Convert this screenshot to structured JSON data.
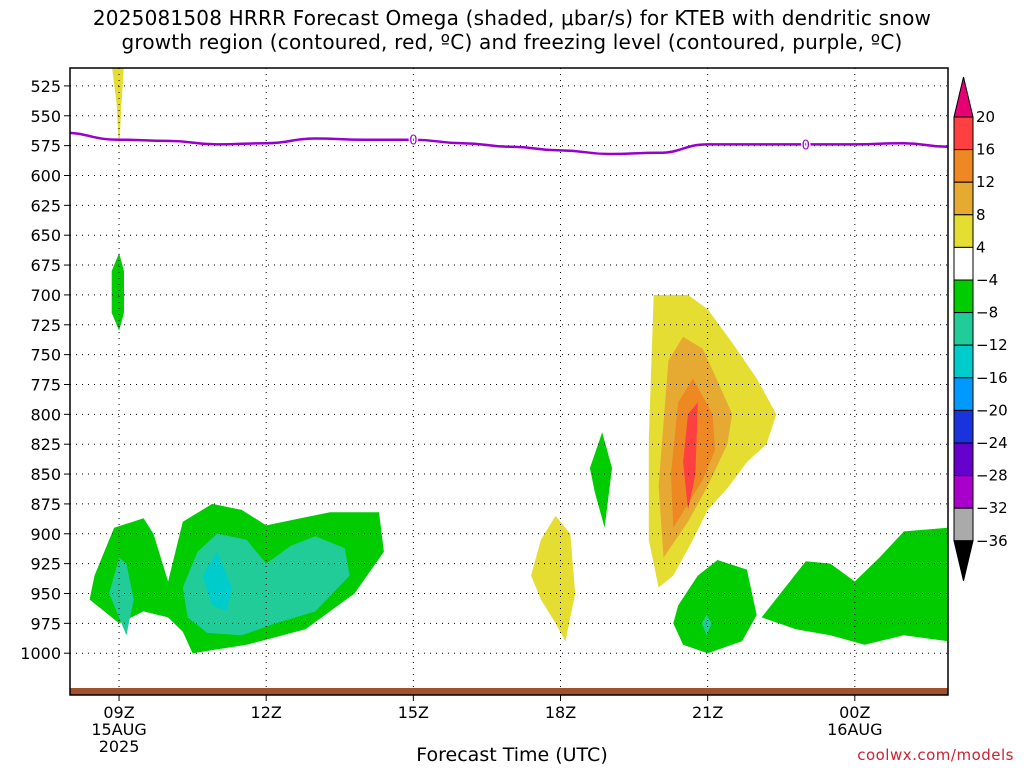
{
  "title_line1": "2025081508 HRRR Forecast Omega (shaded, μbar/s) for KTEB with dendritic snow",
  "title_line2": "growth region (contoured, red, ºC) and freezing level (contoured, purple, ºC)",
  "credit": "coolwx.com/models",
  "colors": {
    "freezing_line": "#9900cc",
    "terrain": "#a0522d",
    "neg4": "#00cc00",
    "neg8": "#22cc99",
    "neg12": "#00cccc",
    "pos4": "#e6dd33",
    "pos8": "#e6aa33",
    "pos12": "#ee8822",
    "pos16": "#ff4040"
  },
  "chart_data": {
    "type": "area",
    "xlabel": "Forecast Time (UTC)",
    "x_unit": "hours from 2025-08-15 08Z",
    "xlim": [
      8,
      25.9
    ],
    "ylim": [
      1035,
      510
    ],
    "y_ticks": [
      525,
      550,
      575,
      600,
      625,
      650,
      675,
      700,
      725,
      750,
      775,
      800,
      825,
      850,
      875,
      900,
      925,
      950,
      975,
      1000
    ],
    "x_ticks": [
      {
        "x": 9,
        "label": "09Z",
        "sub": [
          "15AUG",
          "2025"
        ]
      },
      {
        "x": 12,
        "label": "12Z",
        "sub": []
      },
      {
        "x": 15,
        "label": "15Z",
        "sub": []
      },
      {
        "x": 18,
        "label": "18Z",
        "sub": []
      },
      {
        "x": 21,
        "label": "21Z",
        "sub": []
      },
      {
        "x": 24,
        "label": "00Z",
        "sub": [
          "16AUG"
        ]
      }
    ],
    "grid": true,
    "colorbar": {
      "labels": [
        "20",
        "16",
        "12",
        "8",
        "4",
        "−4",
        "−8",
        "−12",
        "−16",
        "−20",
        "−24",
        "−28",
        "−32",
        "−36"
      ],
      "colors": [
        "#e60073",
        "#ff4040",
        "#ee8822",
        "#e6aa33",
        "#e6dd33",
        "#ffffff",
        "#00cc00",
        "#22cc99",
        "#00cccc",
        "#0099ff",
        "#1a33dd",
        "#6600cc",
        "#aa00cc",
        "#aaaaaa",
        "#000000"
      ]
    },
    "freezing_level": {
      "label": "0",
      "label_x": [
        15,
        23
      ],
      "x": [
        7.8,
        9,
        10,
        11,
        12,
        13,
        14,
        15,
        16,
        17,
        18,
        19,
        20,
        21,
        22,
        23,
        24,
        25,
        25.9
      ],
      "p": [
        564,
        570,
        571,
        574,
        573,
        569,
        570,
        570,
        573,
        576,
        579,
        582,
        581,
        574,
        574,
        574,
        574,
        573,
        576
      ]
    },
    "shaded": [
      {
        "level": "pos4",
        "x": [
          8.8,
          9.1,
          9.05,
          9.0,
          8.95,
          8.85
        ],
        "p": [
          507,
          507,
          540,
          580,
          540,
          507
        ]
      },
      {
        "level": "neg4",
        "x": [
          9.0,
          9.1,
          9.1,
          9.0,
          8.85,
          8.85
        ],
        "p": [
          665,
          680,
          715,
          730,
          715,
          680
        ]
      },
      {
        "level": "neg4",
        "x": [
          8.5,
          8.9,
          9.5,
          9.7,
          10.0,
          10.3,
          10.9,
          11.5,
          12.0,
          12.7,
          13.3,
          14.3,
          14.4,
          13.8,
          12.8,
          11.6,
          10.5,
          10.3,
          10.0,
          9.5,
          9.0,
          8.4,
          8.5
        ],
        "p": [
          935,
          895,
          887,
          900,
          940,
          890,
          875,
          880,
          893,
          887,
          882,
          882,
          915,
          950,
          980,
          993,
          1000,
          982,
          970,
          965,
          975,
          955,
          935
        ]
      },
      {
        "level": "neg8",
        "x": [
          9.0,
          8.8,
          9.15,
          9.3,
          9.15,
          9.0
        ],
        "p": [
          920,
          950,
          985,
          955,
          925,
          920
        ]
      },
      {
        "level": "neg8",
        "x": [
          10.3,
          10.6,
          11.0,
          11.6,
          12.0,
          12.5,
          13.0,
          13.6,
          13.7,
          13.0,
          12.2,
          11.5,
          10.8,
          10.4,
          10.3
        ],
        "p": [
          945,
          915,
          900,
          905,
          925,
          910,
          902,
          912,
          935,
          965,
          975,
          985,
          983,
          970,
          945
        ]
      },
      {
        "level": "neg12",
        "x": [
          10.7,
          11.0,
          11.3,
          11.2,
          10.9,
          10.7
        ],
        "p": [
          935,
          915,
          945,
          965,
          960,
          935
        ]
      },
      {
        "level": "neg4",
        "x": [
          18.6,
          18.85,
          19.05,
          18.9,
          18.7,
          18.6
        ],
        "p": [
          845,
          815,
          845,
          895,
          865,
          845
        ]
      },
      {
        "level": "pos4",
        "x": [
          17.6,
          17.9,
          18.2,
          18.3,
          18.1,
          17.9,
          17.6,
          17.4,
          17.6
        ],
        "p": [
          905,
          885,
          900,
          950,
          990,
          975,
          955,
          935,
          905
        ]
      },
      {
        "level": "pos4",
        "x": [
          19.9,
          20.6,
          21.0,
          21.5,
          22.0,
          22.4,
          22.2,
          21.8,
          21.4,
          21.0,
          20.7,
          20.3,
          20.0,
          19.8,
          19.8,
          19.9
        ],
        "p": [
          700,
          700,
          712,
          740,
          770,
          800,
          825,
          840,
          862,
          880,
          905,
          935,
          945,
          905,
          820,
          700
        ]
      },
      {
        "level": "pos8",
        "x": [
          20.2,
          20.5,
          20.9,
          21.2,
          21.5,
          21.4,
          21.0,
          20.6,
          20.1,
          20.0,
          20.2
        ],
        "p": [
          755,
          735,
          745,
          772,
          800,
          825,
          860,
          890,
          920,
          860,
          755
        ]
      },
      {
        "level": "pos12",
        "x": [
          20.4,
          20.7,
          21.1,
          21.15,
          20.9,
          20.6,
          20.3,
          20.25,
          20.4
        ],
        "p": [
          790,
          770,
          800,
          830,
          855,
          875,
          895,
          850,
          790
        ]
      },
      {
        "level": "pos16",
        "x": [
          20.6,
          20.8,
          20.75,
          20.6,
          20.5,
          20.6
        ],
        "p": [
          800,
          790,
          850,
          880,
          840,
          800
        ]
      },
      {
        "level": "neg4",
        "x": [
          20.4,
          20.8,
          21.2,
          21.8,
          22.0,
          21.7,
          21.0,
          20.5,
          20.3,
          20.4
        ],
        "p": [
          960,
          935,
          922,
          930,
          968,
          990,
          1000,
          993,
          975,
          960
        ]
      },
      {
        "level": "neg8",
        "x": [
          20.98,
          21.08,
          20.98,
          20.88,
          20.98
        ],
        "p": [
          968,
          975,
          985,
          975,
          968
        ]
      },
      {
        "level": "neg4",
        "x": [
          22.1,
          23.0,
          23.5,
          24.0,
          24.5,
          25.0,
          25.9,
          25.9,
          25.0,
          24.2,
          23.5,
          22.8,
          22.1
        ],
        "p": [
          970,
          923,
          925,
          940,
          920,
          898,
          895,
          990,
          985,
          993,
          985,
          980,
          970
        ]
      }
    ]
  }
}
